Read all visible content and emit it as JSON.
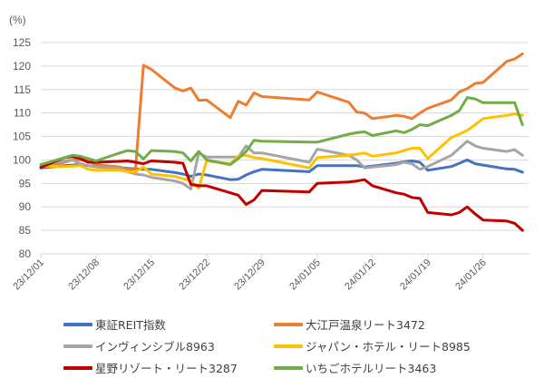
{
  "chart_data": {
    "type": "line",
    "title": "",
    "ylabel": "(%)",
    "xlabel": "",
    "ylim": [
      80,
      125
    ],
    "yticks": [
      "80",
      "85",
      "90",
      "95",
      "100",
      "105",
      "110",
      "115",
      "120",
      "125"
    ],
    "xticks": [
      "23/12/01",
      "23/12/08",
      "23/12/15",
      "23/12/22",
      "23/12/29",
      "24/01/05",
      "24/01/12",
      "24/01/19",
      "24/01/26"
    ],
    "grid": true,
    "legend_position": "bottom",
    "x": [
      "2023-12-01",
      "2023-12-04",
      "2023-12-05",
      "2023-12-06",
      "2023-12-07",
      "2023-12-08",
      "2023-12-11",
      "2023-12-12",
      "2023-12-13",
      "2023-12-14",
      "2023-12-15",
      "2023-12-18",
      "2023-12-19",
      "2023-12-20",
      "2023-12-21",
      "2023-12-22",
      "2023-12-25",
      "2023-12-26",
      "2023-12-27",
      "2023-12-28",
      "2023-12-29",
      "2024-01-04",
      "2024-01-05",
      "2024-01-09",
      "2024-01-10",
      "2024-01-11",
      "2024-01-12",
      "2024-01-15",
      "2024-01-16",
      "2024-01-17",
      "2024-01-18",
      "2024-01-19",
      "2024-01-22",
      "2024-01-23",
      "2024-01-24",
      "2024-01-25",
      "2024-01-26",
      "2024-01-29",
      "2024-01-30",
      "2024-01-31"
    ],
    "series": [
      {
        "name": "東証REIT指数",
        "color": "#4472C4",
        "values": [
          98.3,
          98.8,
          98.9,
          99.0,
          98.8,
          98.6,
          98.4,
          98.2,
          98.1,
          98.0,
          98.0,
          97.3,
          97.0,
          96.5,
          97.0,
          96.8,
          95.8,
          95.9,
          96.8,
          97.5,
          98.0,
          97.5,
          98.8,
          98.8,
          98.8,
          98.5,
          98.7,
          99.3,
          99.6,
          99.8,
          99.5,
          97.8,
          98.6,
          99.3,
          100.0,
          99.2,
          98.9,
          98.1,
          98.0,
          97.4
        ]
      },
      {
        "name": "大江戸温泉リート3472",
        "color": "#ED7D31",
        "values": [
          98.5,
          99.5,
          100.0,
          100.0,
          99.8,
          99.0,
          98.5,
          98.0,
          98.0,
          120.2,
          119.3,
          115.3,
          114.7,
          115.3,
          112.7,
          112.8,
          109.0,
          112.5,
          111.7,
          114.3,
          113.5,
          112.8,
          114.5,
          112.3,
          110.2,
          110.0,
          108.8,
          109.5,
          109.3,
          108.8,
          110.0,
          111.0,
          112.8,
          114.5,
          115.2,
          116.3,
          116.5,
          121.0,
          121.5,
          122.6
        ]
      },
      {
        "name": "インヴィンシブル8963",
        "color": "#A5A5A5",
        "values": [
          98.6,
          99.8,
          100.0,
          99.2,
          98.8,
          98.5,
          98.2,
          97.5,
          97.0,
          96.8,
          96.3,
          95.5,
          95.0,
          93.8,
          101.5,
          100.6,
          100.6,
          100.6,
          103.0,
          101.5,
          101.5,
          99.5,
          102.3,
          101.0,
          100.0,
          98.3,
          98.5,
          99.0,
          99.5,
          99.2,
          98.0,
          98.6,
          101.0,
          102.5,
          104.0,
          103.0,
          102.5,
          101.8,
          102.2,
          101.0
        ]
      },
      {
        "name": "ジャパン・ホテル・リート8985",
        "color": "#FFC000",
        "values": [
          98.7,
          98.6,
          98.7,
          98.8,
          98.0,
          97.8,
          97.8,
          97.5,
          97.5,
          98.5,
          97.0,
          96.5,
          96.0,
          95.5,
          94.0,
          99.8,
          99.2,
          100.8,
          101.0,
          100.5,
          100.3,
          98.3,
          100.5,
          101.0,
          101.2,
          101.5,
          100.8,
          101.5,
          102.0,
          102.5,
          102.5,
          100.3,
          104.8,
          105.5,
          106.3,
          107.5,
          108.8,
          109.5,
          109.8,
          109.5
        ]
      },
      {
        "name": "星野リゾート・リート3287",
        "color": "#C00000",
        "values": [
          98.4,
          100.5,
          100.7,
          100.3,
          99.5,
          99.5,
          99.7,
          99.8,
          99.5,
          99.2,
          99.8,
          99.5,
          99.3,
          94.8,
          94.5,
          94.5,
          93.0,
          92.5,
          90.5,
          91.5,
          93.5,
          93.2,
          95.0,
          95.3,
          95.5,
          95.8,
          94.5,
          93.0,
          92.7,
          92.0,
          91.8,
          88.8,
          88.3,
          88.8,
          90.0,
          88.5,
          87.2,
          87.0,
          86.5,
          85.0
        ]
      },
      {
        "name": "いちごホテルリート3463",
        "color": "#70AD47",
        "values": [
          99.0,
          100.5,
          101.0,
          100.8,
          100.3,
          99.8,
          101.5,
          102.0,
          101.8,
          100.2,
          102.0,
          101.8,
          101.5,
          99.8,
          101.8,
          100.0,
          99.0,
          100.3,
          101.8,
          104.2,
          104.0,
          103.8,
          103.8,
          105.5,
          105.8,
          106.0,
          105.2,
          106.2,
          105.8,
          106.5,
          107.5,
          107.3,
          109.5,
          110.5,
          113.3,
          113.0,
          112.2,
          112.2,
          112.2,
          107.5
        ]
      }
    ]
  }
}
